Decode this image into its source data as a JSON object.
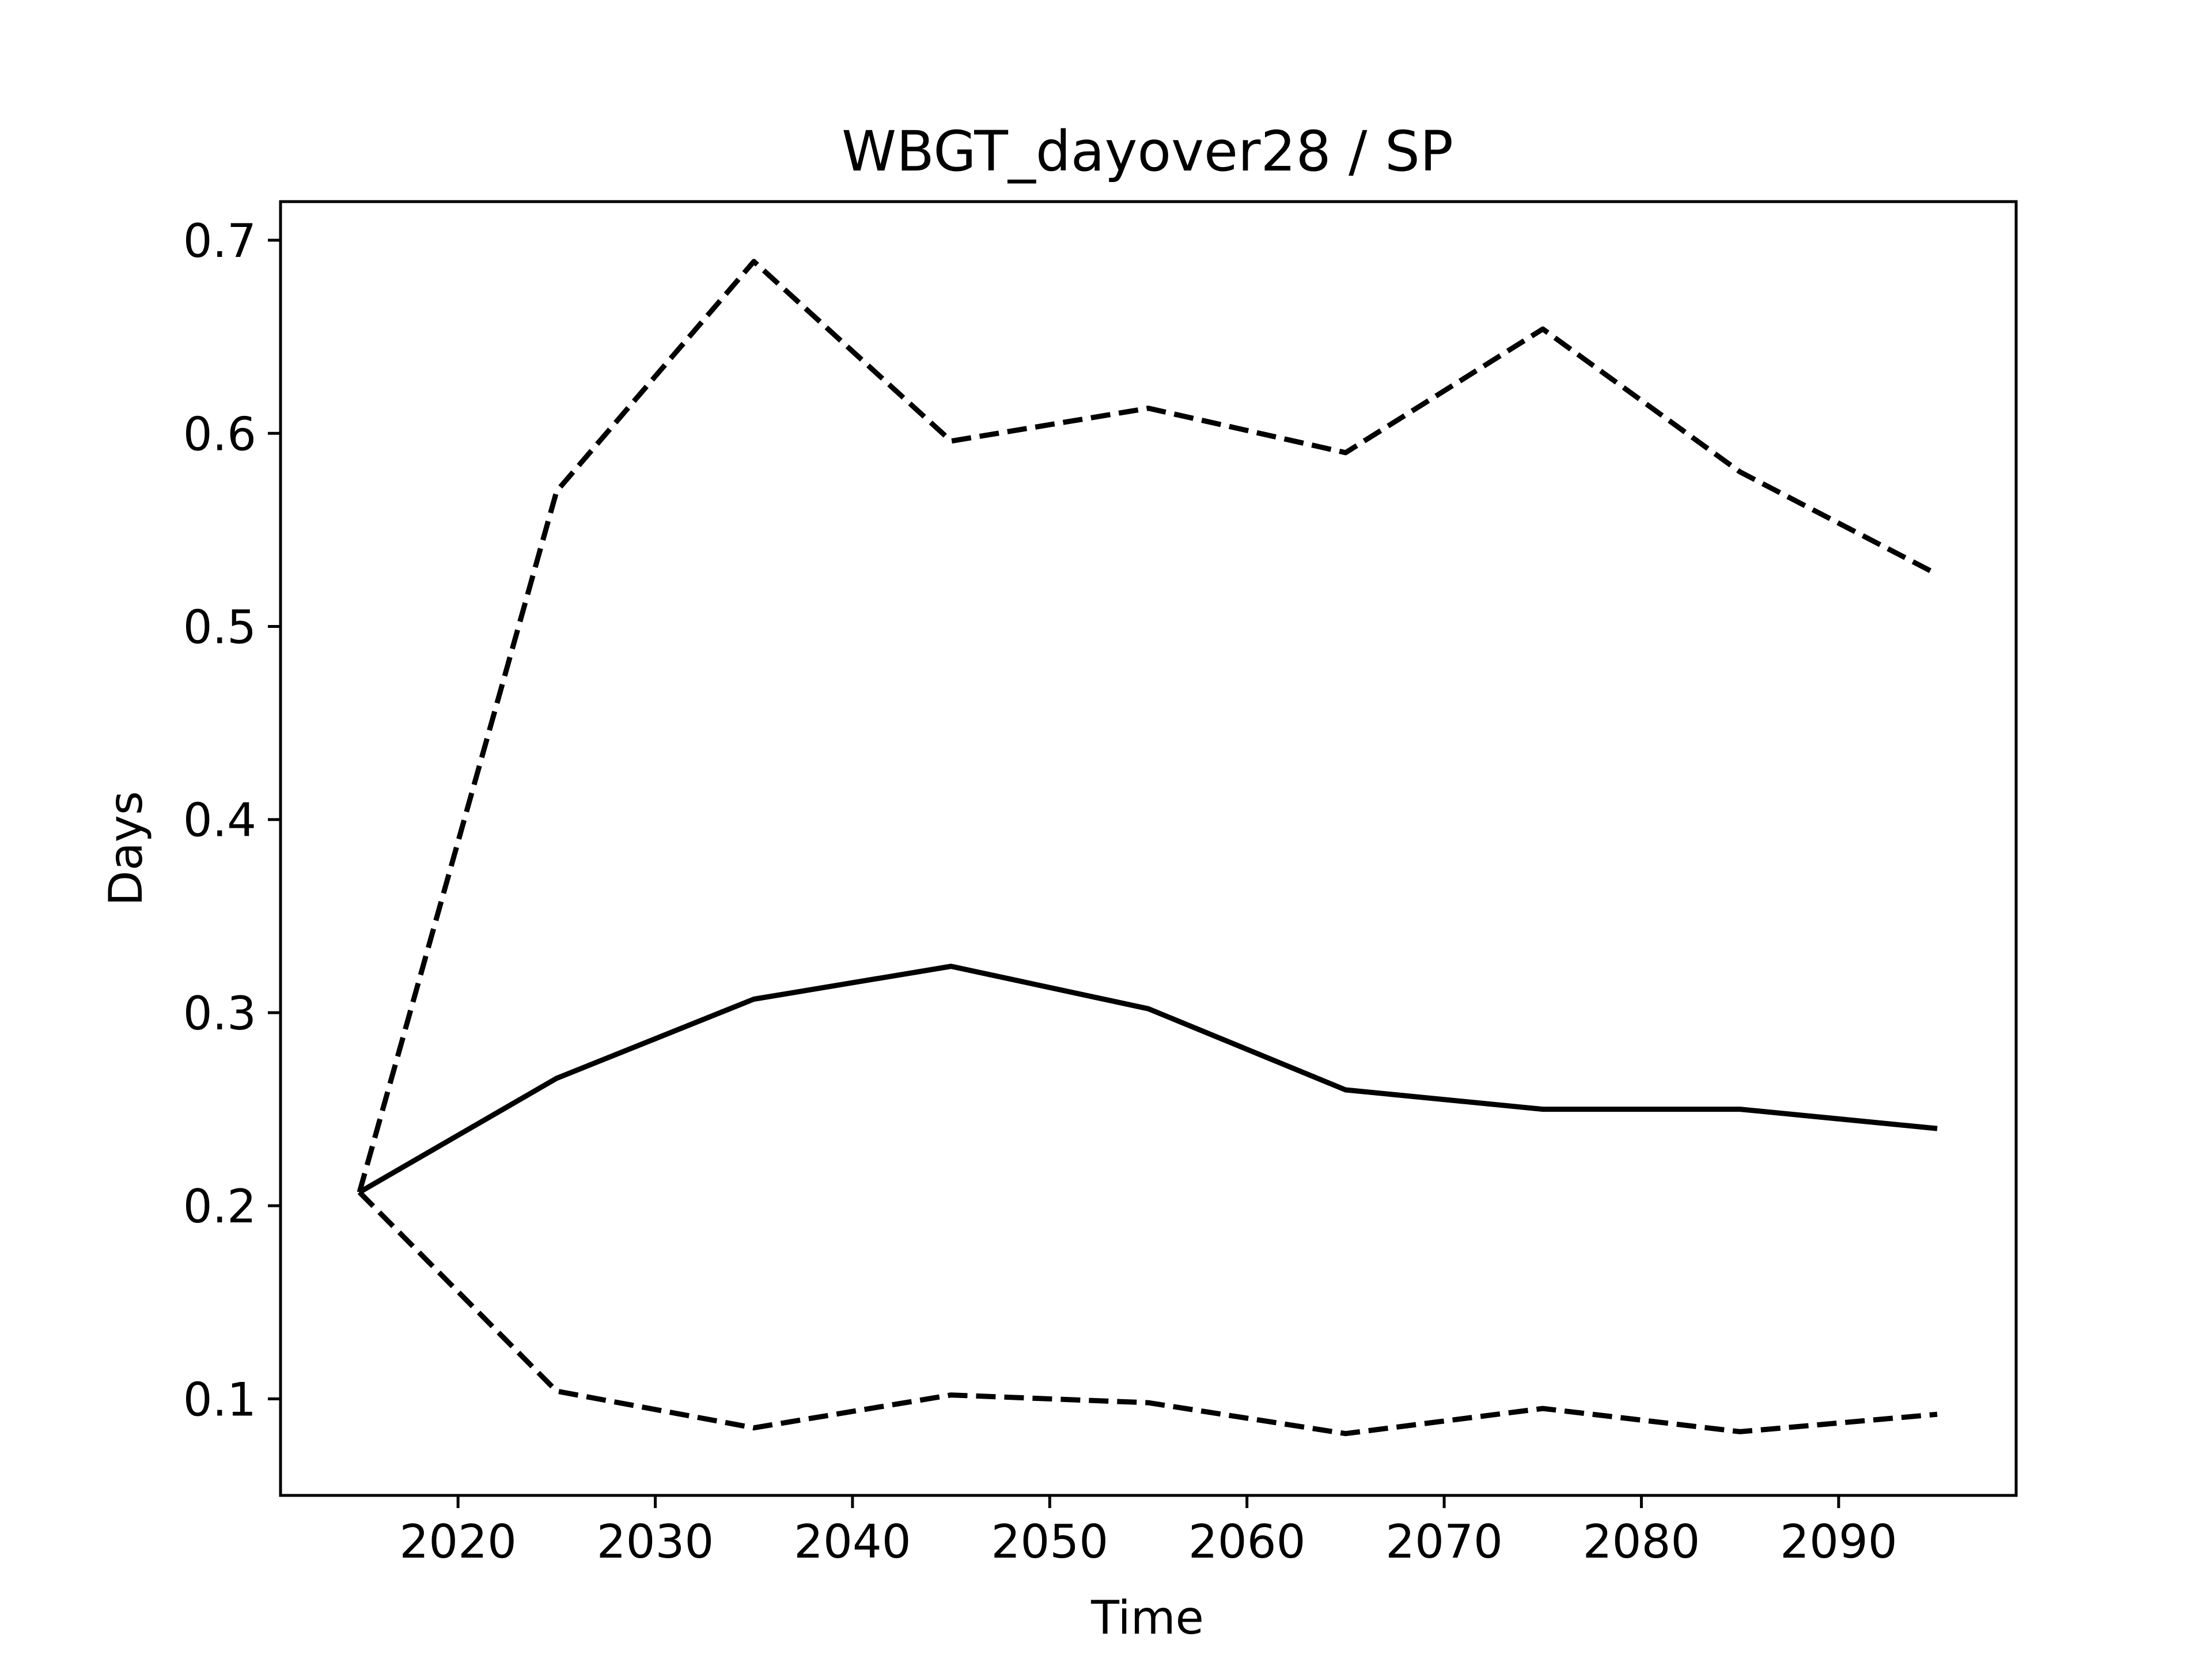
{
  "chart_data": {
    "type": "line",
    "title": "WBGT_dayover28 / SP",
    "xlabel": "Time",
    "ylabel": "Days",
    "xlim": [
      2011,
      2099
    ],
    "ylim": [
      0.05,
      0.72
    ],
    "x_ticks": [
      2020,
      2030,
      2040,
      2050,
      2060,
      2070,
      2080,
      2090
    ],
    "y_ticks": [
      0.1,
      0.2,
      0.3,
      0.4,
      0.5,
      0.6,
      0.7
    ],
    "grid": false,
    "x": [
      2015,
      2025,
      2035,
      2045,
      2055,
      2065,
      2075,
      2085,
      2095
    ],
    "series": [
      {
        "style": "dashed",
        "color": "#000000",
        "values": [
          0.207,
          0.57,
          0.689,
          0.596,
          0.613,
          0.59,
          0.654,
          0.58,
          0.527
        ]
      },
      {
        "style": "solid",
        "color": "#000000",
        "values": [
          0.207,
          0.266,
          0.307,
          0.324,
          0.302,
          0.26,
          0.25,
          0.25,
          0.24
        ]
      },
      {
        "style": "dashed",
        "color": "#000000",
        "values": [
          0.207,
          0.104,
          0.085,
          0.102,
          0.098,
          0.082,
          0.095,
          0.083,
          0.092
        ]
      }
    ]
  }
}
